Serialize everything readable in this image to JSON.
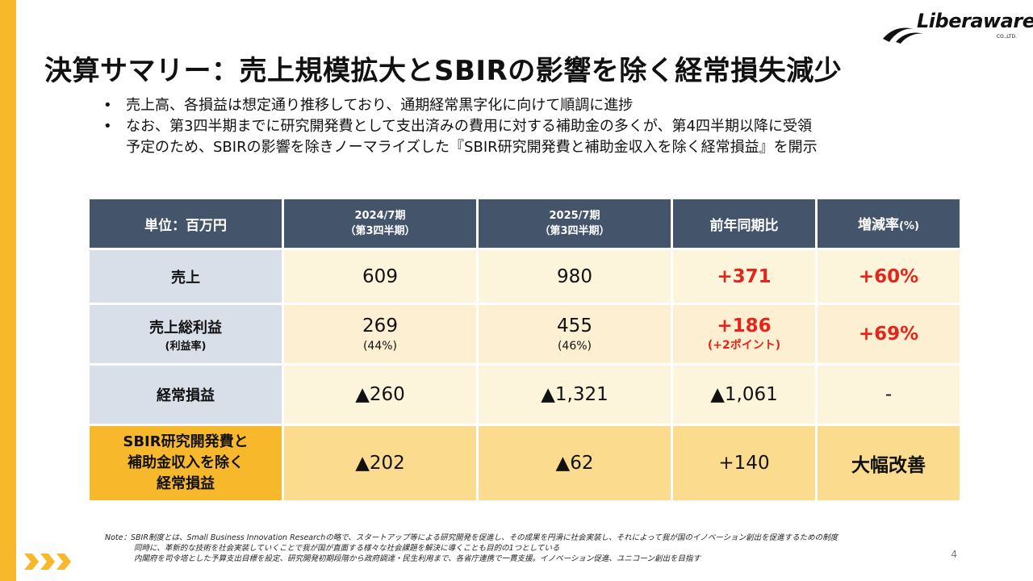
{
  "logo": {
    "name": "Liberaware",
    "sub": "CO.,LTD."
  },
  "title": "決算サマリー：売上規模拡大とSBIRの影響を除く経常損失減少",
  "bullets": [
    "売上高、各損益は想定通り推移しており、通期経常黒字化に向けて順調に進捗",
    "なお、第3四半期までに研究開発費として支出済みの費用に対する補助金の多くが、第4四半期以降に受領",
    "予定のため、SBIRの影響を除きノーマライズした『SBIR研究開発費と補助金収入を除く経常損益』を開示"
  ],
  "table": {
    "headers": {
      "unit": "単位：百万円",
      "fy2024": "2024/7期",
      "fy2024_sub": "（第3四半期）",
      "fy2025": "2025/7期",
      "fy2025_sub": "（第3四半期）",
      "yoy": "前年同期比",
      "rate": "増減率",
      "rate_unit": "(%)"
    },
    "rows": {
      "sales": {
        "label": "売上",
        "fy2024": "609",
        "fy2025": "980",
        "yoy": "+371",
        "rate": "+60%"
      },
      "gross": {
        "label": "売上総利益",
        "label_sub": "(利益率)",
        "fy2024": "269",
        "fy2024_sub": "(44%)",
        "fy2025": "455",
        "fy2025_sub": "(46%)",
        "yoy": "+186",
        "yoy_sub": "(+2ポイント)",
        "rate": "+69%"
      },
      "ordinary": {
        "label": "経常損益",
        "fy2024": "▲260",
        "fy2025": "▲1,321",
        "yoy": "▲1,061",
        "rate": "-"
      },
      "sbir": {
        "label_l1": "SBIR研究開発費と",
        "label_l2": "補助金収入を除く",
        "label_l3": "経常損益",
        "fy2024": "▲202",
        "fy2025": "▲62",
        "yoy": "+140",
        "rate": "大幅改善"
      }
    }
  },
  "notes": [
    "Note：SBIR制度とは、Small Business Innovation Researchの略で、スタートアップ等による研究開発を促進し、その成果を円滑に社会実装し、それによって我が国のイノベーション創出を促進するための制度",
    "同時に、革新的な技術を社会実装していくことで我が国が直面する様々な社会課題を解決に導くことも目的の1つとしている",
    "内閣府を司令塔とした予算支出目標を設定、研究開発初期段階から政府調達・民生利用まで、各省庁連携で一貫支援。イノベーション促進、ユニコーン創出を目指す"
  ],
  "page_number": "4",
  "colors": {
    "accent": "#f7b92b",
    "header": "#44546a",
    "positive": "#e6251a"
  }
}
